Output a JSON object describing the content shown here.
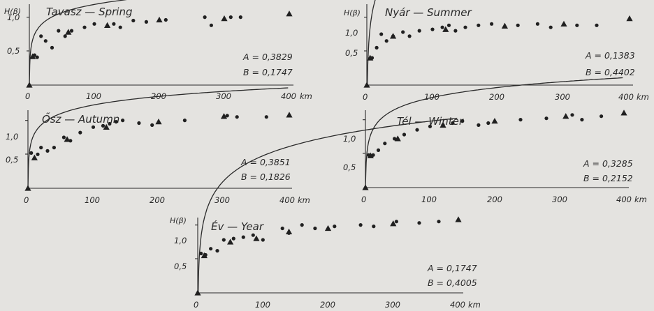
{
  "chart_data": [
    {
      "type": "scatter",
      "title": "Tavasz — Spring",
      "ylabel": "H(β)",
      "xlabel_unit": "km",
      "x_ticks": [
        0,
        100,
        200,
        300,
        400
      ],
      "y_ticks": [
        "0,5",
        "1,0"
      ],
      "xlim": [
        0,
        400
      ],
      "ylim": [
        0,
        1.15
      ],
      "params": [
        "A = 0,3829",
        "B = 0,1747"
      ],
      "A": 0.3829,
      "B": 0.1747,
      "points_dot": [
        [
          8,
          0.44
        ],
        [
          12,
          0.41
        ],
        [
          18,
          0.72
        ],
        [
          25,
          0.65
        ],
        [
          35,
          0.55
        ],
        [
          45,
          0.8
        ],
        [
          55,
          0.72
        ],
        [
          65,
          0.8
        ],
        [
          85,
          0.85
        ],
        [
          100,
          0.9
        ],
        [
          130,
          0.9
        ],
        [
          140,
          0.85
        ],
        [
          160,
          0.95
        ],
        [
          180,
          0.93
        ],
        [
          210,
          0.96
        ],
        [
          270,
          1.0
        ],
        [
          280,
          0.88
        ],
        [
          310,
          1.0
        ],
        [
          325,
          1.0
        ]
      ],
      "points_triangle": [
        [
          5,
          0.42
        ],
        [
          60,
          0.78
        ],
        [
          120,
          0.88
        ],
        [
          200,
          0.96
        ],
        [
          300,
          0.98
        ],
        [
          400,
          1.05
        ]
      ]
    },
    {
      "type": "scatter",
      "title": "Nyár — Summer",
      "ylabel": "H(β)",
      "xlabel_unit": "km",
      "x_ticks": [
        0,
        100,
        200,
        300,
        400
      ],
      "y_ticks": [
        "0,5",
        "1,0"
      ],
      "xlim": [
        0,
        400
      ],
      "ylim": [
        0,
        1.15
      ],
      "params": [
        "A = 0,1383",
        "B = 0,4402"
      ],
      "A": 0.1383,
      "B": 0.4402,
      "points_dot": [
        [
          8,
          0.4
        ],
        [
          15,
          0.55
        ],
        [
          22,
          0.75
        ],
        [
          30,
          0.65
        ],
        [
          40,
          0.72
        ],
        [
          55,
          0.78
        ],
        [
          65,
          0.72
        ],
        [
          80,
          0.8
        ],
        [
          100,
          0.82
        ],
        [
          115,
          0.85
        ],
        [
          125,
          0.88
        ],
        [
          135,
          0.8
        ],
        [
          150,
          0.85
        ],
        [
          170,
          0.88
        ],
        [
          190,
          0.9
        ],
        [
          230,
          0.88
        ],
        [
          260,
          0.9
        ],
        [
          280,
          0.85
        ],
        [
          320,
          0.88
        ],
        [
          350,
          0.88
        ]
      ],
      "points_triangle": [
        [
          5,
          0.4
        ],
        [
          40,
          0.72
        ],
        [
          120,
          0.82
        ],
        [
          210,
          0.87
        ],
        [
          300,
          0.9
        ],
        [
          400,
          0.98
        ]
      ]
    },
    {
      "type": "scatter",
      "title": "Ősz — Autumn",
      "ylabel": "",
      "xlabel_unit": "km",
      "x_ticks": [
        0,
        100,
        200,
        300,
        400
      ],
      "y_ticks": [
        "0,5",
        "1,0"
      ],
      "xlim": [
        0,
        400
      ],
      "ylim": [
        0,
        1.15
      ],
      "params": [
        "A = 0,3851",
        "B = 0,1826"
      ],
      "A": 0.3851,
      "B": 0.1826,
      "points_dot": [
        [
          5,
          0.52
        ],
        [
          15,
          0.5
        ],
        [
          20,
          0.6
        ],
        [
          30,
          0.55
        ],
        [
          40,
          0.6
        ],
        [
          55,
          0.75
        ],
        [
          65,
          0.7
        ],
        [
          80,
          0.82
        ],
        [
          100,
          0.9
        ],
        [
          115,
          0.92
        ],
        [
          125,
          0.95
        ],
        [
          135,
          0.98
        ],
        [
          145,
          1.0
        ],
        [
          170,
          0.96
        ],
        [
          190,
          0.93
        ],
        [
          240,
          1.0
        ],
        [
          305,
          1.07
        ],
        [
          320,
          1.05
        ],
        [
          365,
          1.05
        ]
      ],
      "points_triangle": [
        [
          10,
          0.45
        ],
        [
          60,
          0.72
        ],
        [
          120,
          0.9
        ],
        [
          200,
          0.98
        ],
        [
          300,
          1.06
        ],
        [
          400,
          1.08
        ]
      ]
    },
    {
      "type": "scatter",
      "title": "Tél — Winter",
      "ylabel": "",
      "xlabel_unit": "km",
      "x_ticks": [
        0,
        100,
        200,
        300,
        400
      ],
      "y_ticks": [
        "0,5",
        "1,0"
      ],
      "xlim": [
        0,
        400
      ],
      "ylim": [
        0,
        1.15
      ],
      "params": [
        "A = 0,3285",
        "B = 0,2152"
      ],
      "A": 0.3285,
      "B": 0.2152,
      "points_dot": [
        [
          5,
          0.48
        ],
        [
          12,
          0.48
        ],
        [
          20,
          0.55
        ],
        [
          30,
          0.65
        ],
        [
          45,
          0.72
        ],
        [
          60,
          0.78
        ],
        [
          80,
          0.85
        ],
        [
          100,
          0.9
        ],
        [
          120,
          0.92
        ],
        [
          135,
          0.95
        ],
        [
          150,
          0.98
        ],
        [
          175,
          0.92
        ],
        [
          190,
          0.95
        ],
        [
          240,
          1.0
        ],
        [
          280,
          1.02
        ],
        [
          320,
          1.07
        ],
        [
          335,
          1.0
        ],
        [
          365,
          1.05
        ]
      ],
      "points_triangle": [
        [
          8,
          0.47
        ],
        [
          50,
          0.72
        ],
        [
          120,
          0.92
        ],
        [
          200,
          0.98
        ],
        [
          310,
          1.05
        ],
        [
          400,
          1.1
        ]
      ]
    },
    {
      "type": "scatter",
      "title": "Év — Year",
      "ylabel": "H(β)",
      "xlabel_unit": "km",
      "x_ticks": [
        0,
        100,
        200,
        300,
        400
      ],
      "y_ticks": [
        "0,5",
        "1,0"
      ],
      "xlim": [
        0,
        400
      ],
      "ylim": [
        0,
        1.15
      ],
      "params": [
        "A = 0,1747",
        "B = 0,4005"
      ],
      "A": 0.1747,
      "B": 0.4005,
      "points_dot": [
        [
          5,
          0.58
        ],
        [
          12,
          0.56
        ],
        [
          20,
          0.65
        ],
        [
          30,
          0.62
        ],
        [
          40,
          0.78
        ],
        [
          55,
          0.8
        ],
        [
          70,
          0.82
        ],
        [
          85,
          0.85
        ],
        [
          100,
          0.78
        ],
        [
          130,
          0.95
        ],
        [
          140,
          0.88
        ],
        [
          160,
          1.0
        ],
        [
          180,
          0.95
        ],
        [
          210,
          0.98
        ],
        [
          250,
          1.0
        ],
        [
          270,
          0.98
        ],
        [
          305,
          1.05
        ],
        [
          340,
          1.03
        ],
        [
          370,
          1.05
        ]
      ],
      "points_triangle": [
        [
          10,
          0.55
        ],
        [
          50,
          0.75
        ],
        [
          90,
          0.8
        ],
        [
          140,
          0.9
        ],
        [
          200,
          0.95
        ],
        [
          300,
          1.02
        ],
        [
          400,
          1.08
        ]
      ]
    }
  ]
}
